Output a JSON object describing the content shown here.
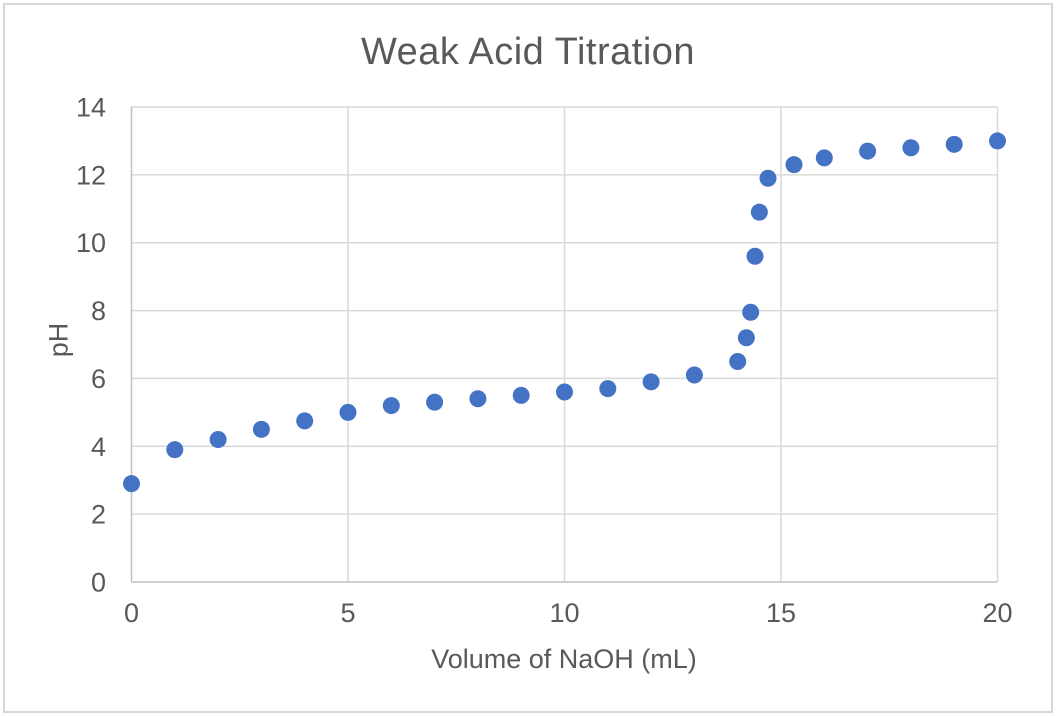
{
  "window": {
    "background": "#ffffff",
    "border_color": "#d8d8d8"
  },
  "chart_data": {
    "type": "scatter",
    "title": "Weak Acid Titration",
    "xlabel": "Volume of NaOH (mL)",
    "ylabel": "pH",
    "xlim": [
      0,
      20
    ],
    "ylim": [
      0,
      14
    ],
    "x_ticks": [
      0,
      5,
      10,
      15,
      20
    ],
    "y_ticks": [
      0,
      2,
      4,
      6,
      8,
      10,
      12,
      14
    ],
    "grid": true,
    "legend": "none",
    "marker_color": "#4472C4",
    "marker_radius_px": 8.5,
    "gridline_color": "#D9D9D9",
    "axis_line_color": "#BFBFBF",
    "text_color": "#595959",
    "x": [
      0,
      1,
      2,
      3,
      4,
      5,
      6,
      7,
      8,
      9,
      10,
      11,
      12,
      13,
      14,
      14.2,
      14.3,
      14.4,
      14.5,
      14.7,
      15.3,
      16,
      17,
      18,
      19,
      20
    ],
    "y": [
      2.9,
      3.9,
      4.2,
      4.5,
      4.75,
      5.0,
      5.2,
      5.3,
      5.4,
      5.5,
      5.6,
      5.7,
      5.9,
      6.1,
      6.5,
      7.2,
      7.95,
      9.6,
      10.9,
      11.9,
      12.3,
      12.5,
      12.7,
      12.8,
      12.9,
      13.0
    ]
  }
}
